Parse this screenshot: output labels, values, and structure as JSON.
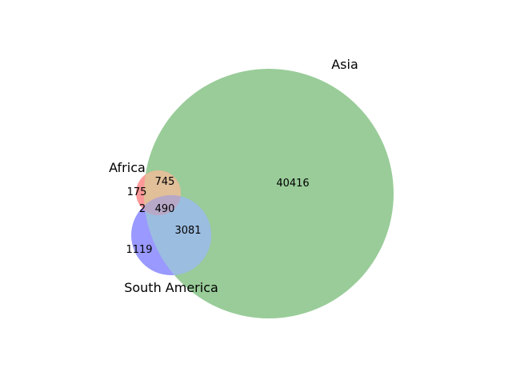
{
  "chart_data": {
    "type": "venn3",
    "sets": [
      {
        "name": "Africa",
        "color": "#ff9999"
      },
      {
        "name": "Asia",
        "color": "#99cc99"
      },
      {
        "name": "South America",
        "color": "#9999ff"
      }
    ],
    "regions": {
      "africa_only": "175",
      "asia_only": "40416",
      "africa_asia": "745",
      "south_america_only": "1119",
      "africa_south_america": "2",
      "asia_south_america": "3081",
      "all_three": "490"
    },
    "colors": {
      "africa_fill": "#ff9999",
      "asia_fill": "#99cc99",
      "south_america_fill": "#9999ff",
      "africa_asia_fill": "#e0bf99",
      "asia_south_america_fill": "#9bbde0",
      "africa_south_america_fill": "#cc99cc",
      "all_three_fill": "#b7a8c8"
    }
  }
}
